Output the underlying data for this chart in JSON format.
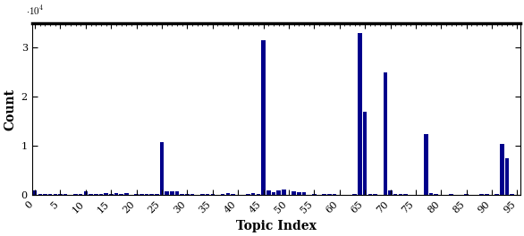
{
  "title": "",
  "xlabel": "Topic Index",
  "ylabel": "Count",
  "bar_color": "#00008B",
  "ylim": [
    0,
    35000
  ],
  "yticks": [
    0,
    10000,
    20000,
    30000
  ],
  "ytick_labels": [
    "0",
    "1",
    "2",
    "3"
  ],
  "xticks": [
    0,
    5,
    10,
    15,
    20,
    25,
    30,
    35,
    40,
    45,
    50,
    55,
    60,
    65,
    70,
    75,
    80,
    85,
    90,
    95
  ],
  "values": [
    900,
    200,
    150,
    200,
    300,
    200,
    200,
    100,
    300,
    200,
    700,
    200,
    300,
    200,
    350,
    300,
    400,
    200,
    350,
    100,
    200,
    150,
    200,
    150,
    200,
    10800,
    700,
    800,
    750,
    300,
    200,
    200,
    100,
    200,
    300,
    200,
    100,
    200,
    400,
    300,
    100,
    100,
    300,
    400,
    300,
    31500,
    1000,
    600,
    1000,
    1050,
    100,
    700,
    600,
    600,
    100,
    200,
    100,
    200,
    300,
    200,
    100,
    100,
    100,
    200,
    33000,
    17000,
    200,
    300,
    100,
    25000,
    1000,
    200,
    200,
    200,
    100,
    100,
    100,
    12500,
    500,
    200,
    100,
    100,
    200,
    100,
    100,
    200,
    100,
    100,
    300,
    200,
    100,
    200,
    10500,
    7500,
    200,
    100
  ],
  "background_color": "#ffffff",
  "figsize": [
    5.86,
    2.64
  ],
  "dpi": 100
}
